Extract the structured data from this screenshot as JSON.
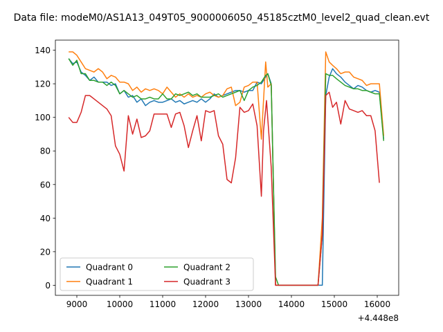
{
  "chart_data": {
    "type": "line",
    "title": "Data file: modeM0/AS1A13_049T05_9000006050_45185cztM0_level2_quad_clean.evt",
    "xlabel": "",
    "ylabel": "",
    "x_offset_label": "+4.448e8",
    "xlim": [
      8500,
      16500
    ],
    "ylim": [
      -6,
      146
    ],
    "x_ticks": [
      9000,
      10000,
      11000,
      12000,
      13000,
      14000,
      15000,
      16000
    ],
    "x_tick_labels": [
      "9000",
      "10000",
      "11000",
      "12000",
      "13000",
      "14000",
      "15000",
      "16000"
    ],
    "y_ticks": [
      0,
      20,
      40,
      60,
      80,
      100,
      120,
      140
    ],
    "y_tick_labels": [
      "0",
      "20",
      "40",
      "60",
      "80",
      "100",
      "120",
      "140"
    ],
    "grid": false,
    "legend": {
      "placement": "lower-left",
      "columns": 2
    },
    "series": [
      {
        "name": "Quadrant 0",
        "color": "#1f77b4",
        "points": [
          [
            8810,
            135
          ],
          [
            8905,
            132
          ],
          [
            9000,
            133
          ],
          [
            9100,
            127
          ],
          [
            9200,
            125
          ],
          [
            9300,
            122
          ],
          [
            9400,
            124
          ],
          [
            9500,
            121
          ],
          [
            9600,
            121
          ],
          [
            9700,
            121
          ],
          [
            9800,
            119
          ],
          [
            9900,
            120
          ],
          [
            10000,
            114
          ],
          [
            10100,
            116
          ],
          [
            10200,
            112
          ],
          [
            10300,
            113
          ],
          [
            10400,
            109
          ],
          [
            10500,
            111
          ],
          [
            10600,
            107
          ],
          [
            10700,
            109
          ],
          [
            10800,
            110
          ],
          [
            10900,
            109
          ],
          [
            11000,
            109
          ],
          [
            11100,
            110
          ],
          [
            11200,
            111
          ],
          [
            11300,
            109
          ],
          [
            11400,
            110
          ],
          [
            11500,
            108
          ],
          [
            11600,
            109
          ],
          [
            11700,
            110
          ],
          [
            11800,
            109
          ],
          [
            11900,
            111
          ],
          [
            12000,
            109
          ],
          [
            12100,
            111
          ],
          [
            12200,
            114
          ],
          [
            12300,
            112
          ],
          [
            12400,
            113
          ],
          [
            12500,
            114
          ],
          [
            12600,
            115
          ],
          [
            12700,
            116
          ],
          [
            12800,
            116
          ],
          [
            12900,
            115
          ],
          [
            13000,
            116
          ],
          [
            13100,
            116
          ],
          [
            13200,
            121
          ],
          [
            13300,
            120
          ],
          [
            13400,
            124
          ],
          [
            13450,
            126
          ],
          [
            13530,
            120
          ],
          [
            13630,
            0
          ],
          [
            13700,
            0
          ],
          [
            13900,
            0
          ],
          [
            14100,
            0
          ],
          [
            14300,
            0
          ],
          [
            14500,
            0
          ],
          [
            14620,
            0
          ],
          [
            14720,
            0
          ],
          [
            14800,
            113
          ],
          [
            14880,
            124
          ],
          [
            14960,
            129
          ],
          [
            15050,
            126
          ],
          [
            15150,
            124
          ],
          [
            15250,
            121
          ],
          [
            15350,
            119
          ],
          [
            15450,
            117
          ],
          [
            15550,
            119
          ],
          [
            15650,
            118
          ],
          [
            15750,
            116
          ],
          [
            15850,
            115
          ],
          [
            15950,
            116
          ],
          [
            16050,
            115
          ],
          [
            16150,
            87
          ]
        ]
      },
      {
        "name": "Quadrant 1",
        "color": "#ff7f0e",
        "points": [
          [
            8810,
            139
          ],
          [
            8905,
            139
          ],
          [
            9000,
            137
          ],
          [
            9100,
            133
          ],
          [
            9200,
            129
          ],
          [
            9300,
            128
          ],
          [
            9400,
            127
          ],
          [
            9500,
            129
          ],
          [
            9600,
            127
          ],
          [
            9700,
            123
          ],
          [
            9800,
            125
          ],
          [
            9900,
            124
          ],
          [
            10000,
            121
          ],
          [
            10100,
            121
          ],
          [
            10200,
            120
          ],
          [
            10300,
            116
          ],
          [
            10400,
            118
          ],
          [
            10500,
            115
          ],
          [
            10600,
            117
          ],
          [
            10700,
            116
          ],
          [
            10800,
            117
          ],
          [
            10900,
            116
          ],
          [
            11000,
            114
          ],
          [
            11100,
            118
          ],
          [
            11200,
            115
          ],
          [
            11300,
            112
          ],
          [
            11400,
            114
          ],
          [
            11500,
            112
          ],
          [
            11600,
            114
          ],
          [
            11700,
            112
          ],
          [
            11800,
            113
          ],
          [
            11900,
            112
          ],
          [
            12000,
            114
          ],
          [
            12100,
            115
          ],
          [
            12200,
            113
          ],
          [
            12300,
            112
          ],
          [
            12400,
            113
          ],
          [
            12500,
            117
          ],
          [
            12600,
            118
          ],
          [
            12700,
            107
          ],
          [
            12800,
            109
          ],
          [
            12900,
            118
          ],
          [
            13000,
            119
          ],
          [
            13100,
            121
          ],
          [
            13200,
            121
          ],
          [
            13300,
            87
          ],
          [
            13400,
            133
          ],
          [
            13450,
            118
          ],
          [
            13530,
            120
          ],
          [
            13630,
            0
          ],
          [
            13700,
            0
          ],
          [
            13900,
            0
          ],
          [
            14100,
            0
          ],
          [
            14300,
            0
          ],
          [
            14500,
            0
          ],
          [
            14620,
            0
          ],
          [
            14720,
            40
          ],
          [
            14800,
            139
          ],
          [
            14880,
            133
          ],
          [
            14960,
            131
          ],
          [
            15050,
            129
          ],
          [
            15150,
            126
          ],
          [
            15250,
            127
          ],
          [
            15350,
            127
          ],
          [
            15450,
            124
          ],
          [
            15550,
            123
          ],
          [
            15650,
            122
          ],
          [
            15750,
            119
          ],
          [
            15850,
            120
          ],
          [
            15950,
            120
          ],
          [
            16050,
            120
          ],
          [
            16150,
            89
          ]
        ]
      },
      {
        "name": "Quadrant 2",
        "color": "#2ca02c",
        "points": [
          [
            8810,
            135
          ],
          [
            8905,
            131
          ],
          [
            9000,
            134
          ],
          [
            9100,
            126
          ],
          [
            9200,
            126
          ],
          [
            9300,
            122
          ],
          [
            9400,
            122
          ],
          [
            9500,
            121
          ],
          [
            9600,
            121
          ],
          [
            9700,
            119
          ],
          [
            9800,
            121
          ],
          [
            9900,
            119
          ],
          [
            10000,
            114
          ],
          [
            10100,
            116
          ],
          [
            10200,
            114
          ],
          [
            10300,
            112
          ],
          [
            10400,
            113
          ],
          [
            10500,
            111
          ],
          [
            10600,
            111
          ],
          [
            10700,
            112
          ],
          [
            10800,
            111
          ],
          [
            10900,
            111
          ],
          [
            11000,
            114
          ],
          [
            11100,
            111
          ],
          [
            11200,
            111
          ],
          [
            11300,
            114
          ],
          [
            11400,
            113
          ],
          [
            11500,
            114
          ],
          [
            11600,
            115
          ],
          [
            11700,
            113
          ],
          [
            11800,
            114
          ],
          [
            11900,
            112
          ],
          [
            12000,
            112
          ],
          [
            12100,
            112
          ],
          [
            12200,
            113
          ],
          [
            12300,
            114
          ],
          [
            12400,
            112
          ],
          [
            12500,
            113
          ],
          [
            12600,
            114
          ],
          [
            12700,
            115
          ],
          [
            12800,
            116
          ],
          [
            12900,
            110
          ],
          [
            13000,
            116
          ],
          [
            13100,
            118
          ],
          [
            13200,
            119
          ],
          [
            13300,
            121
          ],
          [
            13400,
            125
          ],
          [
            13450,
            126
          ],
          [
            13530,
            119
          ],
          [
            13630,
            5
          ],
          [
            13700,
            0
          ],
          [
            13900,
            0
          ],
          [
            14100,
            0
          ],
          [
            14300,
            0
          ],
          [
            14500,
            0
          ],
          [
            14620,
            0
          ],
          [
            14720,
            30
          ],
          [
            14800,
            126
          ],
          [
            14880,
            125
          ],
          [
            14960,
            125
          ],
          [
            15050,
            123
          ],
          [
            15150,
            121
          ],
          [
            15250,
            119
          ],
          [
            15350,
            118
          ],
          [
            15450,
            117
          ],
          [
            15550,
            117
          ],
          [
            15650,
            116
          ],
          [
            15750,
            116
          ],
          [
            15850,
            115
          ],
          [
            15950,
            114
          ],
          [
            16050,
            114
          ],
          [
            16150,
            86
          ]
        ]
      },
      {
        "name": "Quadrant 3",
        "color": "#d62728",
        "points": [
          [
            8810,
            100
          ],
          [
            8905,
            97
          ],
          [
            9000,
            97
          ],
          [
            9100,
            103
          ],
          [
            9200,
            113
          ],
          [
            9300,
            113
          ],
          [
            9400,
            111
          ],
          [
            9500,
            109
          ],
          [
            9600,
            107
          ],
          [
            9700,
            105
          ],
          [
            9800,
            101
          ],
          [
            9900,
            83
          ],
          [
            10000,
            78
          ],
          [
            10100,
            68
          ],
          [
            10200,
            101
          ],
          [
            10300,
            90
          ],
          [
            10400,
            99
          ],
          [
            10500,
            88
          ],
          [
            10600,
            89
          ],
          [
            10700,
            92
          ],
          [
            10800,
            102
          ],
          [
            10900,
            102
          ],
          [
            11000,
            102
          ],
          [
            11100,
            102
          ],
          [
            11200,
            94
          ],
          [
            11300,
            102
          ],
          [
            11400,
            103
          ],
          [
            11500,
            95
          ],
          [
            11600,
            82
          ],
          [
            11700,
            92
          ],
          [
            11800,
            101
          ],
          [
            11900,
            86
          ],
          [
            12000,
            104
          ],
          [
            12100,
            103
          ],
          [
            12200,
            104
          ],
          [
            12300,
            89
          ],
          [
            12400,
            84
          ],
          [
            12500,
            63
          ],
          [
            12600,
            61
          ],
          [
            12700,
            76
          ],
          [
            12800,
            106
          ],
          [
            12900,
            103
          ],
          [
            13000,
            104
          ],
          [
            13100,
            108
          ],
          [
            13200,
            95
          ],
          [
            13300,
            53
          ],
          [
            13350,
            92
          ],
          [
            13420,
            110
          ],
          [
            13530,
            70
          ],
          [
            13630,
            0
          ],
          [
            13700,
            0
          ],
          [
            13900,
            0
          ],
          [
            14100,
            0
          ],
          [
            14300,
            0
          ],
          [
            14500,
            0
          ],
          [
            14620,
            0
          ],
          [
            14720,
            30
          ],
          [
            14800,
            113
          ],
          [
            14880,
            115
          ],
          [
            14960,
            106
          ],
          [
            15050,
            109
          ],
          [
            15150,
            96
          ],
          [
            15250,
            110
          ],
          [
            15350,
            105
          ],
          [
            15450,
            104
          ],
          [
            15550,
            103
          ],
          [
            15650,
            104
          ],
          [
            15750,
            101
          ],
          [
            15850,
            101
          ],
          [
            15950,
            92
          ],
          [
            16050,
            61
          ]
        ]
      }
    ]
  }
}
